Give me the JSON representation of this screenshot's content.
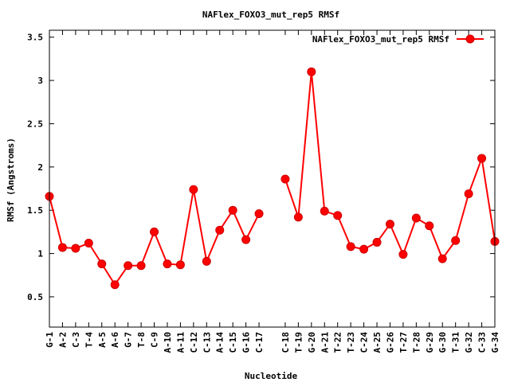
{
  "chart_data": {
    "type": "line",
    "title": "NAFlex_FOXO3_mut_rep5 RMSf",
    "xlabel": "Nucleotide",
    "ylabel": "RMSf (Angstroms)",
    "ylim": [
      0.15,
      3.58
    ],
    "yticks": [
      "0.5",
      "1",
      "1.5",
      "2",
      "2.5",
      "3",
      "3.5"
    ],
    "ytick_values": [
      0.5,
      1,
      1.5,
      2,
      2.5,
      3,
      3.5
    ],
    "legend_position": "top-right",
    "series": [
      {
        "name": "NAFlex_FOXO3_mut_rep5 RMSf",
        "color": "#ff0000",
        "points": [
          {
            "x": 1,
            "label": "G-1",
            "y": 1.66
          },
          {
            "x": 2,
            "label": "A-2",
            "y": 1.07
          },
          {
            "x": 3,
            "label": "C-3",
            "y": 1.06
          },
          {
            "x": 4,
            "label": "T-4",
            "y": 1.12
          },
          {
            "x": 5,
            "label": "A-5",
            "y": 0.88
          },
          {
            "x": 6,
            "label": "A-6",
            "y": 0.64
          },
          {
            "x": 7,
            "label": "G-7",
            "y": 0.86
          },
          {
            "x": 8,
            "label": "T-8",
            "y": 0.86
          },
          {
            "x": 9,
            "label": "C-9",
            "y": 1.25
          },
          {
            "x": 10,
            "label": "A-10",
            "y": 0.88
          },
          {
            "x": 11,
            "label": "A-11",
            "y": 0.87
          },
          {
            "x": 12,
            "label": "C-12",
            "y": 1.74
          },
          {
            "x": 13,
            "label": "C-13",
            "y": 0.91
          },
          {
            "x": 14,
            "label": "A-14",
            "y": 1.27
          },
          {
            "x": 15,
            "label": "C-15",
            "y": 1.5
          },
          {
            "x": 16,
            "label": "G-16",
            "y": 1.16
          },
          {
            "x": 17,
            "label": "C-17",
            "y": 1.46
          },
          {
            "x": 19,
            "label": "C-18",
            "y": 1.86
          },
          {
            "x": 20,
            "label": "T-19",
            "y": 1.42
          },
          {
            "x": 21,
            "label": "G-20",
            "y": 3.1
          },
          {
            "x": 22,
            "label": "A-21",
            "y": 1.49
          },
          {
            "x": 23,
            "label": "T-22",
            "y": 1.44
          },
          {
            "x": 24,
            "label": "T-23",
            "y": 1.08
          },
          {
            "x": 25,
            "label": "C-24",
            "y": 1.05
          },
          {
            "x": 26,
            "label": "A-25",
            "y": 1.13
          },
          {
            "x": 27,
            "label": "G-26",
            "y": 1.34
          },
          {
            "x": 28,
            "label": "T-27",
            "y": 0.99
          },
          {
            "x": 29,
            "label": "T-28",
            "y": 1.41
          },
          {
            "x": 30,
            "label": "G-29",
            "y": 1.32
          },
          {
            "x": 31,
            "label": "G-30",
            "y": 0.94
          },
          {
            "x": 32,
            "label": "T-31",
            "y": 1.15
          },
          {
            "x": 33,
            "label": "G-32",
            "y": 1.69
          },
          {
            "x": 34,
            "label": "C-33",
            "y": 2.1
          },
          {
            "x": 35,
            "label": "G-34",
            "y": 1.14
          }
        ]
      }
    ]
  }
}
